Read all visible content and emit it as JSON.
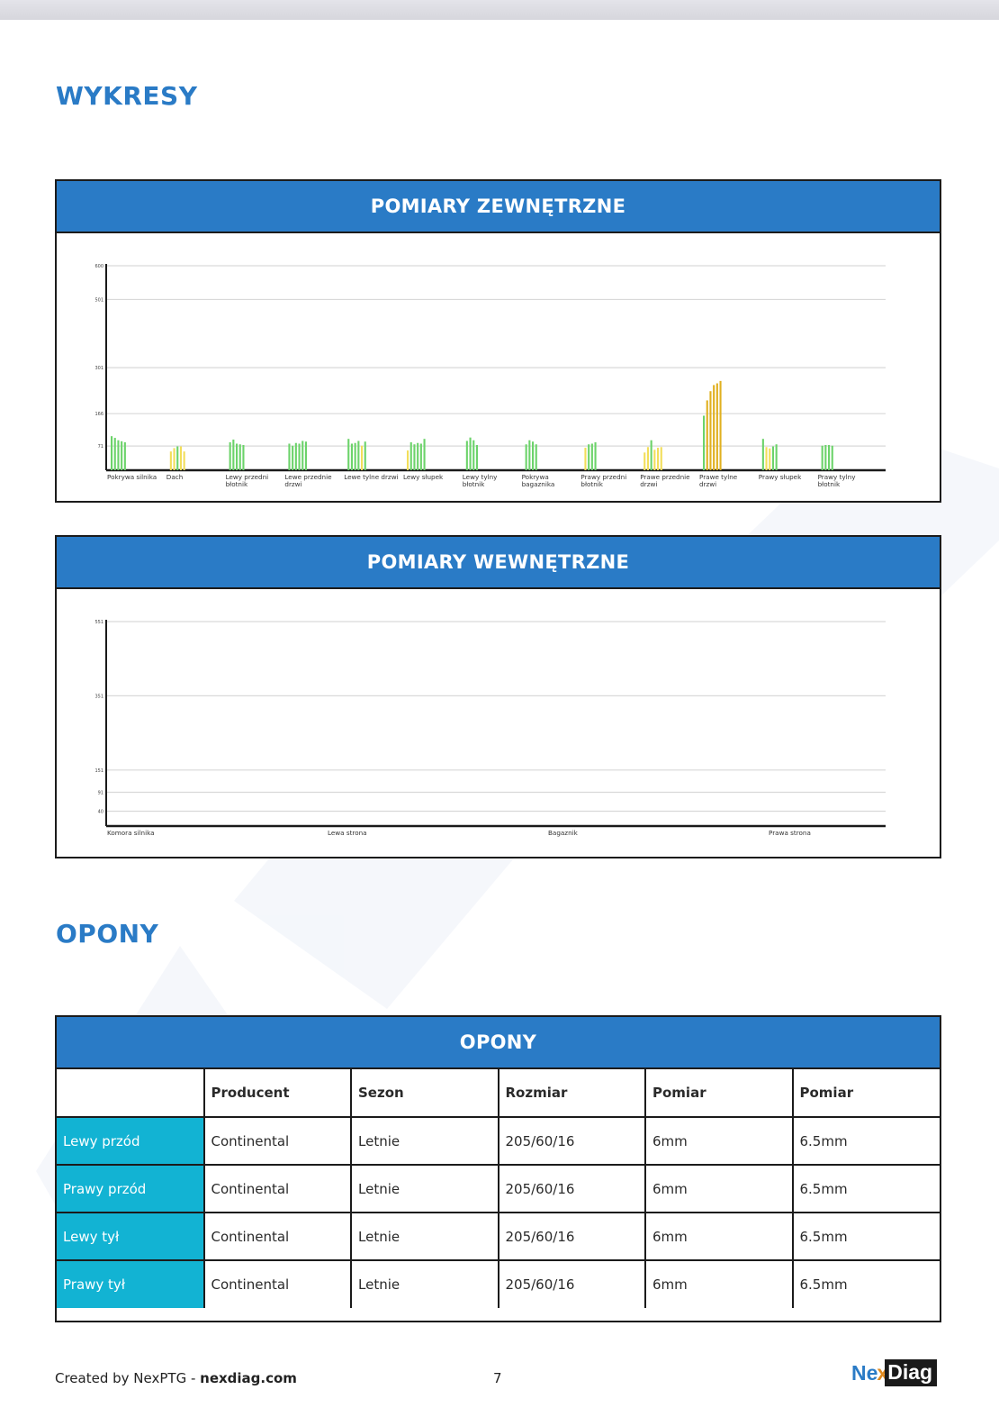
{
  "sections": {
    "charts_title": "WYKRESY",
    "tires_title": "OPONY"
  },
  "exterior_panel": {
    "title": "POMIARY ZEWNĘTRZNE"
  },
  "interior_panel": {
    "title": "POMIARY WEWNĘTRZNE"
  },
  "chart_data": [
    {
      "type": "bar",
      "title": "POMIARY ZEWNĘTRZNE",
      "y_ticks": [
        600,
        501,
        301,
        166,
        71
      ],
      "ylim": [
        0,
        600
      ],
      "grid": true,
      "colors": {
        "green": "#6cd36a",
        "yellow": "#f2de5a",
        "orange": "#e0b020"
      },
      "categories": [
        {
          "label": [
            "Pokrywa silnika"
          ],
          "values": [
            100,
            95,
            88,
            85,
            82
          ],
          "colors": [
            "green",
            "green",
            "green",
            "green",
            "green"
          ]
        },
        {
          "label": [
            "Dach"
          ],
          "values": [
            55,
            65,
            70,
            70,
            55
          ],
          "colors": [
            "yellow",
            "yellow",
            "green",
            "yellow",
            "yellow"
          ]
        },
        {
          "label": [
            "Lewy przedni",
            "błotnik"
          ],
          "values": [
            82,
            90,
            78,
            76,
            74
          ],
          "colors": [
            "green",
            "green",
            "green",
            "green",
            "green"
          ]
        },
        {
          "label": [
            "Lewe przednie",
            "drzwi"
          ],
          "values": [
            78,
            72,
            80,
            78,
            86,
            84
          ],
          "colors": [
            "green",
            "green",
            "green",
            "green",
            "green",
            "green"
          ]
        },
        {
          "label": [
            "Lewe tylne drzwi"
          ],
          "values": [
            92,
            78,
            80,
            86,
            72,
            84
          ],
          "colors": [
            "green",
            "green",
            "green",
            "green",
            "yellow",
            "green"
          ]
        },
        {
          "label": [
            "Lewy słupek"
          ],
          "values": [
            58,
            82,
            76,
            80,
            78,
            92
          ],
          "colors": [
            "yellow",
            "green",
            "green",
            "green",
            "green",
            "green"
          ]
        },
        {
          "label": [
            "Lewy tylny",
            "błotnik"
          ],
          "values": [
            86,
            96,
            88,
            74
          ],
          "colors": [
            "green",
            "green",
            "green",
            "green"
          ]
        },
        {
          "label": [
            "Pokrywa",
            "bagaznika"
          ],
          "values": [
            76,
            88,
            84,
            76
          ],
          "colors": [
            "green",
            "green",
            "green",
            "green"
          ]
        },
        {
          "label": [
            "Prawy przedni",
            "błotnik"
          ],
          "values": [
            66,
            76,
            78,
            82
          ],
          "colors": [
            "yellow",
            "green",
            "green",
            "green"
          ]
        },
        {
          "label": [
            "Prawe przednie",
            "drzwi"
          ],
          "values": [
            52,
            68,
            88,
            60,
            66,
            68
          ],
          "colors": [
            "yellow",
            "yellow",
            "green",
            "yellow",
            "yellow",
            "yellow"
          ]
        },
        {
          "label": [
            "Prawe tylne",
            "drzwi"
          ],
          "values": [
            160,
            205,
            232,
            250,
            255,
            262
          ],
          "colors": [
            "green",
            "orange",
            "orange",
            "orange",
            "orange",
            "orange"
          ]
        },
        {
          "label": [
            "Prawy słupek"
          ],
          "values": [
            92,
            68,
            64,
            70,
            76
          ],
          "colors": [
            "green",
            "yellow",
            "yellow",
            "green",
            "green"
          ]
        },
        {
          "label": [
            "Prawy tylny",
            "błotnik"
          ],
          "values": [
            72,
            74,
            74,
            72
          ],
          "colors": [
            "green",
            "green",
            "green",
            "green"
          ]
        }
      ]
    },
    {
      "type": "bar",
      "title": "POMIARY WEWNĘTRZNE",
      "y_ticks": [
        551,
        351,
        151,
        91,
        40
      ],
      "ylim": [
        0,
        551
      ],
      "grid": true,
      "categories": [
        {
          "label": [
            "Komora silnika"
          ],
          "values": []
        },
        {
          "label": [
            "Lewa strona"
          ],
          "values": []
        },
        {
          "label": [
            "Bagaznik"
          ],
          "values": []
        },
        {
          "label": [
            "Prawa strona"
          ],
          "values": []
        }
      ]
    }
  ],
  "tires_table": {
    "title": "OPONY",
    "headers": [
      "",
      "Producent",
      "Sezon",
      "Rozmiar",
      "Pomiar",
      "Pomiar"
    ],
    "rows": [
      [
        "Lewy przód",
        "Continental",
        "Letnie",
        "205/60/16",
        "6mm",
        "6.5mm"
      ],
      [
        "Prawy przód",
        "Continental",
        "Letnie",
        "205/60/16",
        "6mm",
        "6.5mm"
      ],
      [
        "Lewy tył",
        "Continental",
        "Letnie",
        "205/60/16",
        "6mm",
        "6.5mm"
      ],
      [
        "Prawy tył",
        "Continental",
        "Letnie",
        "205/60/16",
        "6mm",
        "6.5mm"
      ]
    ]
  },
  "footer": {
    "created_prefix": "Created by NexPTG - ",
    "site": "nexdiag.com",
    "page_number": "7",
    "logo": {
      "ne": "Ne",
      "x": "x",
      "diag": "Diag"
    }
  }
}
